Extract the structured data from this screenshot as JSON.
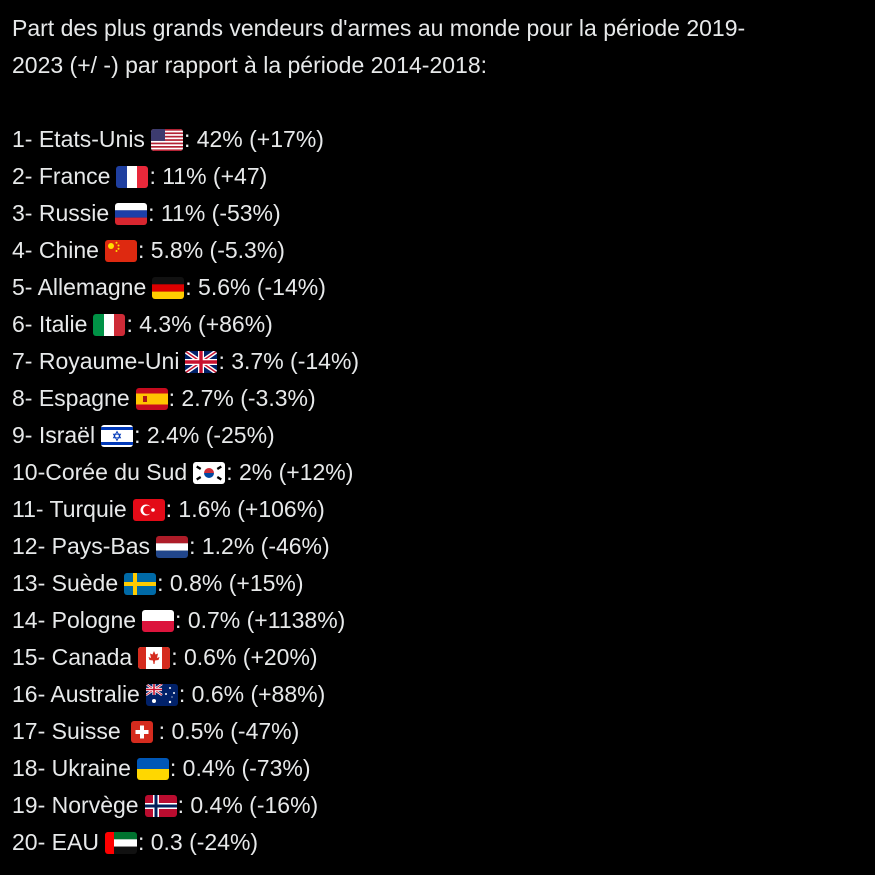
{
  "post": {
    "title": "Part des plus grands vendeurs d'armes au monde pour la période 2019-\n2023 (+/ -) par rapport à la période 2014-2018:",
    "items": [
      {
        "prefix": "1- Etats-Unis",
        "suffix": ": 42% (+17%)",
        "flag": "us-flag-icon"
      },
      {
        "prefix": "2- France",
        "suffix": ": 11% (+47)",
        "flag": "france-flag-icon"
      },
      {
        "prefix": "3- Russie",
        "suffix": ": 11% (-53%)",
        "flag": "russia-flag-icon"
      },
      {
        "prefix": "4- Chine",
        "suffix": ": 5.8% (-5.3%)",
        "flag": "china-flag-icon"
      },
      {
        "prefix": "5- Allemagne",
        "suffix": ": 5.6% (-14%)",
        "flag": "germany-flag-icon"
      },
      {
        "prefix": "6- Italie",
        "suffix": ": 4.3% (+86%)",
        "flag": "italy-flag-icon"
      },
      {
        "prefix": "7- Royaume-Uni",
        "suffix": ": 3.7% (-14%)",
        "flag": "uk-flag-icon"
      },
      {
        "prefix": "8- Espagne",
        "suffix": ": 2.7% (-3.3%)",
        "flag": "spain-flag-icon"
      },
      {
        "prefix": "9- Israël",
        "suffix": ": 2.4% (-25%)",
        "flag": "israel-flag-icon"
      },
      {
        "prefix": "10-Corée du Sud",
        "suffix": ": 2% (+12%)",
        "flag": "south-korea-flag-icon"
      },
      {
        "prefix": "11- Turquie",
        "suffix": ": 1.6% (+106%)",
        "flag": "turkey-flag-icon"
      },
      {
        "prefix": "12- Pays-Bas",
        "suffix": ": 1.2% (-46%)",
        "flag": "netherlands-flag-icon"
      },
      {
        "prefix": "13- Suède",
        "suffix": ": 0.8% (+15%)",
        "flag": "sweden-flag-icon"
      },
      {
        "prefix": "14- Pologne",
        "suffix": ": 0.7% (+1138%)",
        "flag": "poland-flag-icon"
      },
      {
        "prefix": "15- Canada",
        "suffix": ": 0.6% (+20%)",
        "flag": "canada-flag-icon"
      },
      {
        "prefix": "16- Australie",
        "suffix": ": 0.6% (+88%)",
        "flag": "australia-flag-icon"
      },
      {
        "prefix": "17- Suisse",
        "suffix": ": 0.5% (-47%)",
        "flag": "switzerland-flag-icon"
      },
      {
        "prefix": "18- Ukraine",
        "suffix": ": 0.4% (-73%)",
        "flag": "ukraine-flag-icon"
      },
      {
        "prefix": "19- Norvège",
        "suffix": ": 0.4% (-16%)",
        "flag": "norway-flag-icon"
      },
      {
        "prefix": "20- EAU",
        "suffix": ": 0.3 (-24%)",
        "flag": "uae-flag-icon"
      }
    ]
  },
  "colors": {
    "background": "#000000",
    "text": "#e7e9ea"
  }
}
